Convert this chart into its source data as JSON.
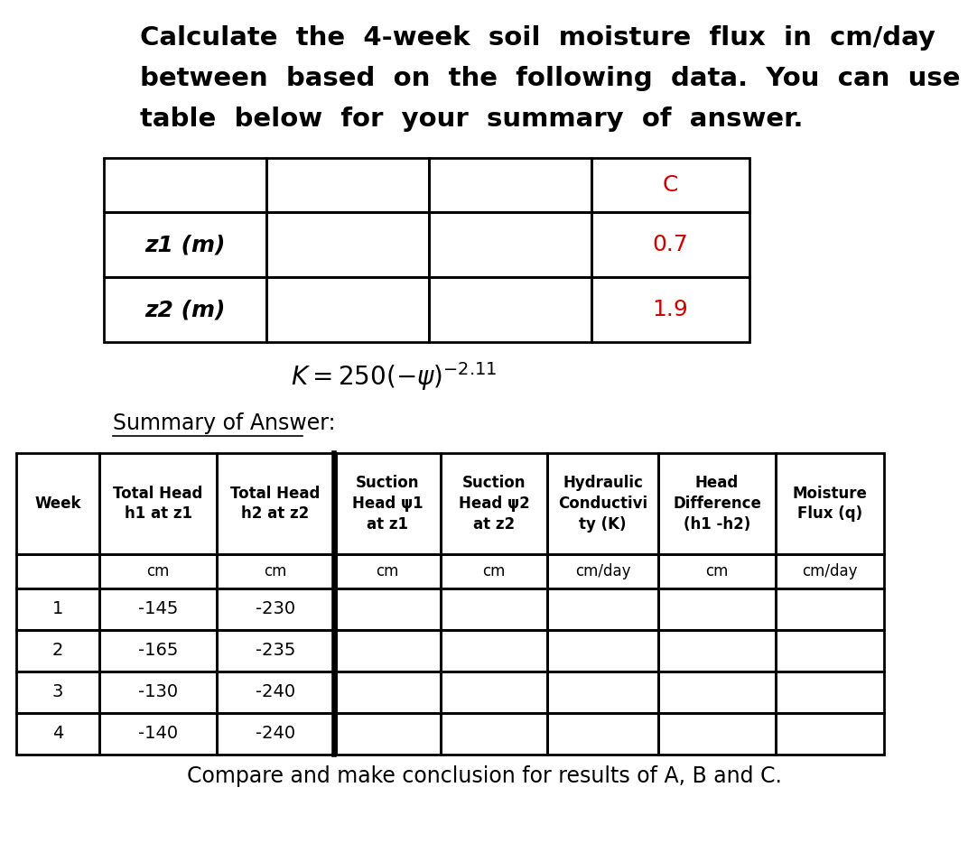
{
  "title_lines": [
    "Calculate  the  4-week  soil  moisture  flux  in  cm/day",
    "between  based  on  the  following  data.  You  can  use  the",
    "table  below  for  your  summary  of  answer."
  ],
  "top_table_rows": [
    [
      "",
      "",
      "",
      "C"
    ],
    [
      "z1 (m)",
      "",
      "",
      "0.7"
    ],
    [
      "z2 (m)",
      "",
      "",
      "1.9"
    ]
  ],
  "summary_label": "Summary of Answer:",
  "header_texts": [
    "Week",
    "Total Head\nh1 at z1",
    "Total Head\nh2 at z2",
    "Suction\nHead ψ1\nat z1",
    "Suction\nHead ψ2\nat z2",
    "Hydraulic\nConductivi\nty (K)",
    "Head\nDifference\n(h1 -h2)",
    "Moisture\nFlux (q)"
  ],
  "unit_row": [
    "",
    "cm",
    "cm",
    "cm",
    "cm",
    "cm/day",
    "cm",
    "cm/day"
  ],
  "data_rows": [
    [
      "1",
      "-145",
      "-230",
      "",
      "",
      "",
      "",
      ""
    ],
    [
      "2",
      "-165",
      "-235",
      "",
      "",
      "",
      "",
      ""
    ],
    [
      "3",
      "-130",
      "-240",
      "",
      "",
      "",
      "",
      ""
    ],
    [
      "4",
      "-140",
      "-240",
      "",
      "",
      "",
      "",
      ""
    ]
  ],
  "conclusion": "Compare and make conclusion for results of A, B and C.",
  "bg_color": "#ffffff",
  "text_color": "#000000",
  "red_color": "#cc0000",
  "line_color": "#000000"
}
